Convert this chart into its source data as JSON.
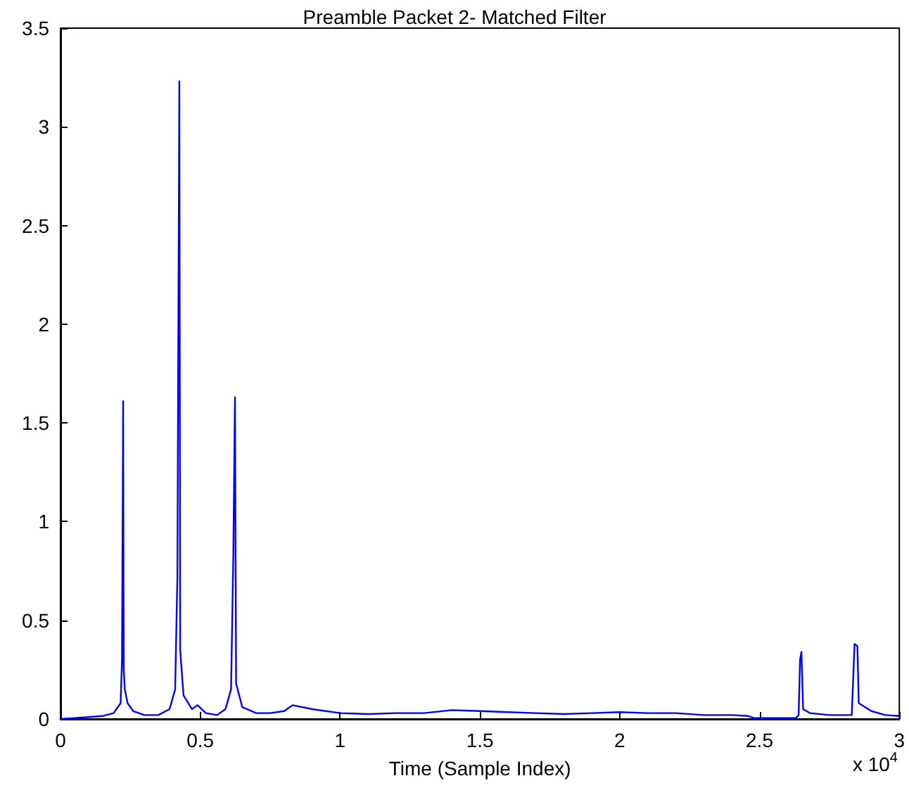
{
  "chart_data": {
    "type": "line",
    "title": "Preamble Packet 2- Matched Filter",
    "xlabel": "Time (Sample Index)",
    "annotations": [
      "x 10$^{4}$"
    ],
    "x": [
      0,
      0.05,
      0.1,
      0.15,
      0.19,
      0.215,
      0.22,
      0.224,
      0.226,
      0.23,
      0.24,
      0.26,
      0.3,
      0.35,
      0.39,
      0.41,
      0.418,
      0.425,
      0.428,
      0.44,
      0.47,
      0.49,
      0.52,
      0.56,
      0.59,
      0.61,
      0.618,
      0.624,
      0.628,
      0.65,
      0.7,
      0.75,
      0.8,
      0.83,
      0.9,
      1,
      1.1,
      1.2,
      1.3,
      1.4,
      1.5,
      1.6,
      1.7,
      1.8,
      1.9,
      2,
      2.1,
      2.2,
      2.3,
      2.4,
      2.46,
      2.48,
      2.63,
      2.64,
      2.645,
      2.65,
      2.656,
      2.68,
      2.75,
      2.83,
      2.84,
      2.85,
      2.855,
      2.9,
      2.95,
      3
    ],
    "series": [
      {
        "color": "#0000ff",
        "values": [
          0,
          0.005,
          0.01,
          0.015,
          0.03,
          0.08,
          0.3,
          1.61,
          0.25,
          0.15,
          0.08,
          0.04,
          0.02,
          0.02,
          0.05,
          0.15,
          0.72,
          3.23,
          0.35,
          0.12,
          0.05,
          0.07,
          0.03,
          0.02,
          0.05,
          0.15,
          0.82,
          1.63,
          0.18,
          0.06,
          0.03,
          0.03,
          0.04,
          0.07,
          0.05,
          0.03,
          0.025,
          0.03,
          0.03,
          0.045,
          0.04,
          0.035,
          0.03,
          0.025,
          0.03,
          0.035,
          0.03,
          0.03,
          0.02,
          0.02,
          0.015,
          0.005,
          0.005,
          0.02,
          0.3,
          0.34,
          0.05,
          0.03,
          0.02,
          0.02,
          0.38,
          0.37,
          0.08,
          0.04,
          0.02,
          0.015
        ]
      }
    ],
    "xlim": [
      0,
      3
    ],
    "xticks": [
      0,
      0.5,
      1,
      1.5,
      2,
      2.5,
      3
    ],
    "ylim": [
      0,
      3.5
    ],
    "yticks": [
      0,
      0.5,
      1,
      1.5,
      2,
      2.5,
      3,
      3.5
    ],
    "grid": false,
    "marker": "none",
    "line_style": "solid"
  }
}
